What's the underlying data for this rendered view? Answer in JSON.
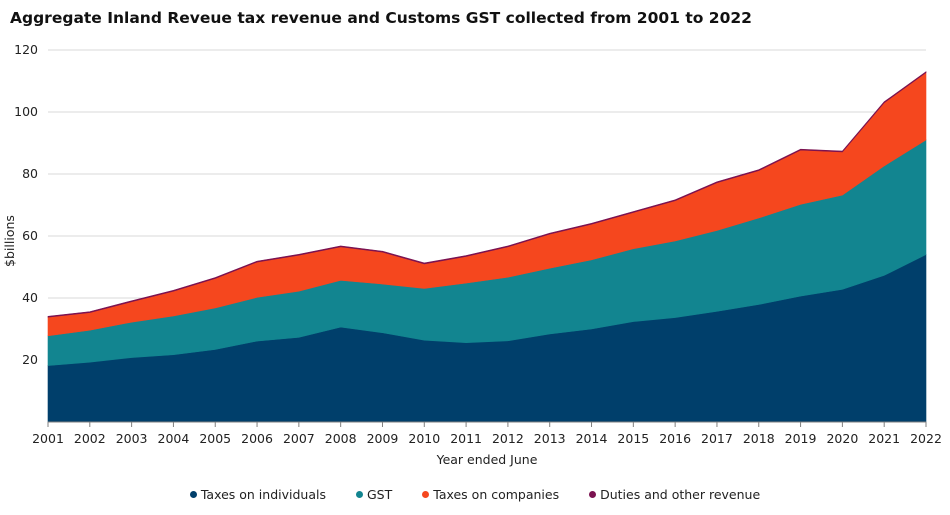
{
  "chart_data": {
    "type": "area",
    "stacked": true,
    "title": "Aggregate Inland Reveue tax revenue and Customs GST collected from 2001 to 2022",
    "xlabel": "Year ended June",
    "ylabel": "$billions",
    "ylim": [
      0,
      120
    ],
    "yticks": [
      20,
      40,
      60,
      80,
      100,
      120
    ],
    "grid": true,
    "legend_position": "bottom",
    "categories": [
      "2001",
      "2002",
      "2003",
      "2004",
      "2005",
      "2006",
      "2007",
      "2008",
      "2009",
      "2010",
      "2011",
      "2012",
      "2013",
      "2014",
      "2015",
      "2016",
      "2017",
      "2018",
      "2019",
      "2020",
      "2021",
      "2022"
    ],
    "series": [
      {
        "name": "Taxes on individuals",
        "color": "#003f6b",
        "values": [
          18.2,
          19.3,
          20.8,
          21.7,
          23.4,
          26.1,
          27.3,
          30.6,
          28.8,
          26.4,
          25.6,
          26.2,
          28.4,
          30.0,
          32.4,
          33.7,
          35.7,
          37.9,
          40.6,
          42.8,
          47.3,
          54.0
        ]
      },
      {
        "name": "GST",
        "color": "#128590",
        "values": [
          9.6,
          10.3,
          11.4,
          12.5,
          13.4,
          14.1,
          14.9,
          15.1,
          15.7,
          16.7,
          19.2,
          20.5,
          21.2,
          22.3,
          23.5,
          24.7,
          26.1,
          27.9,
          29.6,
          30.4,
          35.3,
          37.0
        ]
      },
      {
        "name": "Taxes on companies",
        "color": "#f5471e",
        "values": [
          6.0,
          5.7,
          6.6,
          8.0,
          9.5,
          11.4,
          11.6,
          10.8,
          10.3,
          7.9,
          8.6,
          9.8,
          11.0,
          11.5,
          11.7,
          13.0,
          15.4,
          15.3,
          17.5,
          13.9,
          20.4,
          21.7
        ]
      },
      {
        "name": "Duties and other revenue",
        "color": "#7b1250",
        "values": [
          0.3,
          0.3,
          0.3,
          0.3,
          0.3,
          0.3,
          0.3,
          0.3,
          0.3,
          0.3,
          0.3,
          0.3,
          0.3,
          0.3,
          0.3,
          0.3,
          0.3,
          0.3,
          0.3,
          0.3,
          0.3,
          0.3
        ]
      }
    ]
  }
}
